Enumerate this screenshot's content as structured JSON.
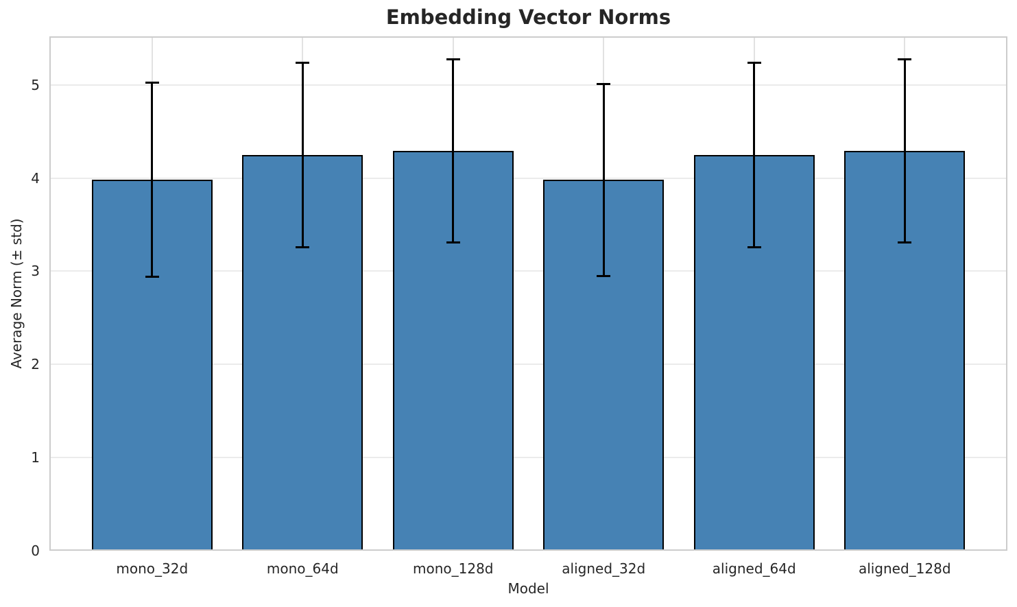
{
  "chart_data": {
    "type": "bar",
    "title": "Embedding Vector Norms",
    "xlabel": "Model",
    "ylabel": "Average Norm (± std)",
    "categories": [
      "mono_32d",
      "mono_64d",
      "mono_128d",
      "aligned_32d",
      "aligned_64d",
      "aligned_128d"
    ],
    "series": [
      {
        "name": "Average Norm",
        "values": [
          3.98,
          4.25,
          4.29,
          3.98,
          4.25,
          4.29
        ],
        "errors": [
          1.04,
          0.99,
          0.98,
          1.03,
          0.99,
          0.98
        ]
      }
    ],
    "error_bar_tops": [
      5.02,
      5.24,
      5.27,
      5.01,
      5.24,
      5.27
    ],
    "error_bar_bottoms": [
      2.94,
      3.26,
      3.31,
      2.95,
      3.26,
      3.31
    ],
    "yticks": [
      0,
      1,
      2,
      3,
      4,
      5
    ],
    "ylim": [
      0,
      5.52
    ],
    "grid": "on",
    "legend": "none",
    "colors": {
      "bar_fill": "#4682B4",
      "bar_edge": "#000000",
      "error_bar": "#000000",
      "grid_line": "#ebebeb",
      "spine": "#cccccc",
      "text": "#262626",
      "background": "#ffffff"
    }
  }
}
